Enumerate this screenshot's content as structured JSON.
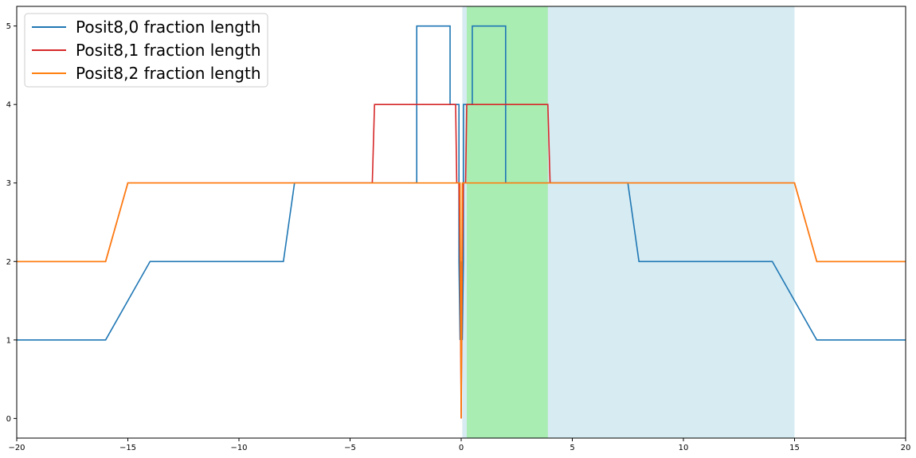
{
  "chart_data": {
    "type": "line",
    "xlim": [
      -20,
      20
    ],
    "ylim": [
      -0.25,
      5.25
    ],
    "xticks": [
      -20,
      -15,
      -10,
      -5,
      0,
      5,
      10,
      15,
      20
    ],
    "xtick_labels": [
      "−20",
      "−15",
      "−10",
      "−5",
      "0",
      "5",
      "10",
      "15",
      "20"
    ],
    "yticks": [
      0,
      1,
      2,
      3,
      4,
      5
    ],
    "ytick_labels": [
      "0",
      "1",
      "2",
      "3",
      "4",
      "5"
    ],
    "grid": false,
    "legend_position": "upper-left",
    "shaded_regions": [
      {
        "x0": 0.05,
        "x1": 15.0,
        "color": "#add8e6",
        "opacity": 0.5
      },
      {
        "x0": 0.25,
        "x1": 3.9,
        "color": "#90ee90",
        "opacity": 0.65
      }
    ],
    "series": [
      {
        "name": "Posit8,0 fraction length",
        "color": "#1f77b4",
        "x": [
          -20,
          -16,
          -14,
          -8,
          -7.5,
          -2,
          -2,
          -0.5,
          -0.5,
          -0.1,
          -0.1,
          -0.05,
          0,
          0.05,
          0.1,
          0.1,
          0.5,
          0.5,
          2,
          2,
          7.5,
          8,
          14,
          16,
          20
        ],
        "y": [
          1,
          1,
          2,
          2,
          3,
          3,
          5,
          5,
          4,
          4,
          2,
          1,
          2,
          1,
          2,
          4,
          4,
          5,
          5,
          3,
          3,
          2,
          2,
          1,
          1
        ]
      },
      {
        "name": "Posit8,1 fraction length",
        "color": "#d62728",
        "x": [
          -20,
          -16,
          -15,
          -4,
          -3.9,
          -0.25,
          -0.2,
          -0.1,
          -0.05,
          0,
          0.05,
          0.1,
          0.2,
          0.25,
          3.9,
          4,
          15,
          16,
          20
        ],
        "y": [
          2,
          2,
          3,
          3,
          4,
          4,
          3,
          3,
          2,
          0,
          2,
          3,
          3,
          4,
          4,
          3,
          3,
          2,
          2
        ]
      },
      {
        "name": "Posit8,2 fraction length",
        "color": "#ff7f0e",
        "x": [
          -20,
          -16,
          -15,
          -0.05,
          0,
          0.05,
          15,
          16,
          20
        ],
        "y": [
          2,
          2,
          3,
          3,
          0,
          3,
          3,
          2,
          2
        ]
      }
    ]
  }
}
